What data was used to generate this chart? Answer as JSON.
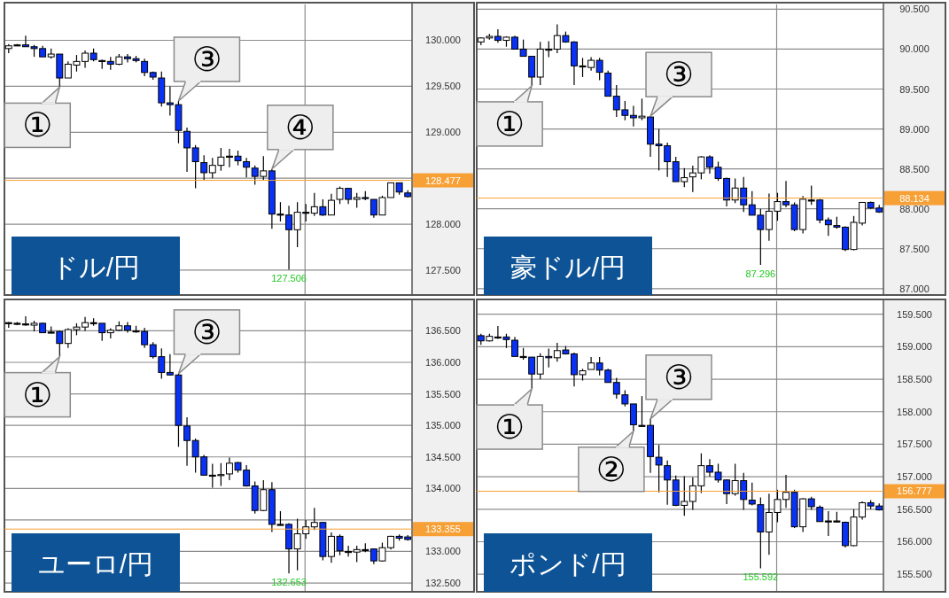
{
  "chart_data": [
    {
      "type": "candlestick",
      "title": "ドル/円",
      "tick_labels": "y",
      "grid": true,
      "categories": [
        null,
        null,
        null,
        null,
        null,
        null,
        null,
        null,
        null,
        null,
        null,
        null,
        null,
        null,
        null,
        null,
        null,
        null,
        null,
        null,
        null,
        null,
        null,
        null,
        null,
        null,
        null,
        null,
        null,
        null,
        null,
        null,
        null,
        null,
        null,
        null,
        null,
        null,
        null,
        null,
        null,
        null,
        null,
        null,
        null,
        null,
        null,
        null
      ],
      "ohlc": [
        [
          129.91,
          129.96,
          129.86,
          129.94
        ],
        [
          129.95,
          129.96,
          129.94,
          129.95
        ],
        [
          129.95,
          130.05,
          129.93,
          129.93
        ],
        [
          129.93,
          129.95,
          129.82,
          129.91
        ],
        [
          129.91,
          129.94,
          129.82,
          129.82
        ],
        [
          129.82,
          129.91,
          129.8,
          129.85
        ],
        [
          129.85,
          129.85,
          129.49,
          129.59
        ],
        [
          129.59,
          129.77,
          129.59,
          129.74
        ],
        [
          129.73,
          129.84,
          129.66,
          129.77
        ],
        [
          129.77,
          129.89,
          129.7,
          129.86
        ],
        [
          129.86,
          129.91,
          129.77,
          129.79
        ],
        [
          129.78,
          129.79,
          129.69,
          129.78
        ],
        [
          129.77,
          129.82,
          129.68,
          129.74
        ],
        [
          129.74,
          129.85,
          129.73,
          129.82
        ],
        [
          129.82,
          129.85,
          129.76,
          129.8
        ],
        [
          129.8,
          129.83,
          129.76,
          129.78
        ],
        [
          129.77,
          129.8,
          129.61,
          129.65
        ],
        [
          129.65,
          129.66,
          129.57,
          129.6
        ],
        [
          129.59,
          129.66,
          129.28,
          129.32
        ],
        [
          129.32,
          129.5,
          129.18,
          129.3
        ],
        [
          129.3,
          129.34,
          128.88,
          129.02
        ],
        [
          129.01,
          129.05,
          128.57,
          128.83
        ],
        [
          128.83,
          128.86,
          128.39,
          128.68
        ],
        [
          128.67,
          128.75,
          128.48,
          128.56
        ],
        [
          128.56,
          128.72,
          128.5,
          128.64
        ],
        [
          128.64,
          128.83,
          128.58,
          128.73
        ],
        [
          128.74,
          128.82,
          128.62,
          128.74
        ],
        [
          128.74,
          128.8,
          128.64,
          128.69
        ],
        [
          128.68,
          128.72,
          128.51,
          128.62
        ],
        [
          128.61,
          128.64,
          128.43,
          128.52
        ],
        [
          128.52,
          128.74,
          128.48,
          128.58
        ],
        [
          128.58,
          128.6,
          127.95,
          128.11
        ],
        [
          128.11,
          128.24,
          128.03,
          128.11
        ],
        [
          128.1,
          128.2,
          127.506,
          127.94
        ],
        [
          127.94,
          128.24,
          127.75,
          128.13
        ],
        [
          128.13,
          128.22,
          128.03,
          128.13
        ],
        [
          128.12,
          128.34,
          128.09,
          128.19
        ],
        [
          128.19,
          128.27,
          128.09,
          128.1
        ],
        [
          128.1,
          128.33,
          128.1,
          128.26
        ],
        [
          128.27,
          128.41,
          128.22,
          128.39
        ],
        [
          128.39,
          128.39,
          128.22,
          128.27
        ],
        [
          128.27,
          128.34,
          128.18,
          128.29
        ],
        [
          128.29,
          128.36,
          128.26,
          128.28
        ],
        [
          128.27,
          128.27,
          128.07,
          128.1
        ],
        [
          128.1,
          128.31,
          128.1,
          128.29
        ],
        [
          128.29,
          128.45,
          128.29,
          128.45
        ],
        [
          128.45,
          128.45,
          128.32,
          128.35
        ],
        [
          128.34,
          128.37,
          128.29,
          128.3
        ]
      ],
      "ylim": [
        127.23,
        130.39
      ],
      "yticks": [
        {
          "value": 127.5,
          "label": "127.500"
        },
        {
          "value": 128,
          "label": "128.000"
        },
        {
          "value": 128.5,
          "label": null
        },
        {
          "value": 129,
          "label": "129.000"
        },
        {
          "value": 129.5,
          "label": "129.500"
        },
        {
          "value": 130,
          "label": "130.000"
        }
      ],
      "ref_lines": [
        {
          "axis": "y",
          "value": 128.477,
          "label": "128.477",
          "color": "#f7a035"
        }
      ],
      "annotations": [
        "①",
        "③",
        "④",
        {
          "text": "127.506",
          "y": 127.506
        }
      ]
    },
    {
      "type": "candlestick",
      "title": "豪ドル/円",
      "tick_labels": "y",
      "grid": true,
      "categories": [
        null,
        null,
        null,
        null,
        null,
        null,
        null,
        null,
        null,
        null,
        null,
        null,
        null,
        null,
        null,
        null,
        null,
        null,
        null,
        null,
        null,
        null,
        null,
        null,
        null,
        null,
        null,
        null,
        null,
        null,
        null,
        null,
        null,
        null,
        null,
        null,
        null,
        null,
        null,
        null,
        null,
        null,
        null,
        null,
        null,
        null,
        null,
        null
      ],
      "ohlc": [
        [
          90.09,
          90.15,
          90.05,
          90.14
        ],
        [
          90.14,
          90.19,
          90.12,
          90.16
        ],
        [
          90.16,
          90.25,
          90.08,
          90.11
        ],
        [
          90.11,
          90.16,
          90.03,
          90.15
        ],
        [
          90.15,
          90.17,
          90.0,
          90.0
        ],
        [
          90.0,
          90.12,
          89.91,
          89.91
        ],
        [
          89.91,
          89.91,
          89.54,
          89.65
        ],
        [
          89.65,
          90.09,
          89.55,
          90.0
        ],
        [
          90.0,
          90.1,
          89.9,
          90.0
        ],
        [
          90.0,
          90.31,
          89.95,
          90.17
        ],
        [
          90.17,
          90.22,
          90.08,
          90.09
        ],
        [
          90.09,
          90.1,
          89.55,
          89.79
        ],
        [
          89.79,
          89.89,
          89.65,
          89.79
        ],
        [
          89.77,
          89.9,
          89.73,
          89.86
        ],
        [
          89.86,
          89.89,
          89.61,
          89.71
        ],
        [
          89.7,
          89.73,
          89.41,
          89.41
        ],
        [
          89.41,
          89.55,
          89.15,
          89.24
        ],
        [
          89.24,
          89.35,
          89.11,
          89.17
        ],
        [
          89.17,
          89.29,
          89.03,
          89.14
        ],
        [
          89.14,
          89.38,
          89.11,
          89.16
        ],
        [
          89.15,
          89.16,
          88.65,
          88.81
        ],
        [
          88.81,
          89.0,
          88.48,
          88.79
        ],
        [
          88.79,
          88.83,
          88.4,
          88.59
        ],
        [
          88.59,
          88.65,
          88.34,
          88.34
        ],
        [
          88.34,
          88.51,
          88.27,
          88.39
        ],
        [
          88.4,
          88.54,
          88.21,
          88.45
        ],
        [
          88.45,
          88.66,
          88.37,
          88.65
        ],
        [
          88.65,
          88.67,
          88.44,
          88.52
        ],
        [
          88.52,
          88.59,
          88.35,
          88.38
        ],
        [
          88.38,
          88.39,
          88.03,
          88.11
        ],
        [
          88.11,
          88.38,
          88.07,
          88.26
        ],
        [
          88.26,
          88.4,
          87.96,
          88.05
        ],
        [
          88.05,
          88.22,
          87.92,
          87.92
        ],
        [
          87.92,
          88.0,
          87.296,
          87.74
        ],
        [
          87.74,
          88.19,
          87.6,
          87.97
        ],
        [
          87.97,
          88.2,
          87.85,
          88.09
        ],
        [
          88.09,
          88.35,
          88.02,
          88.05
        ],
        [
          88.05,
          88.08,
          87.72,
          87.74
        ],
        [
          87.74,
          88.16,
          87.69,
          88.12
        ],
        [
          88.11,
          88.29,
          88.05,
          88.11
        ],
        [
          88.11,
          88.12,
          87.82,
          87.86
        ],
        [
          87.86,
          87.89,
          87.66,
          87.8
        ],
        [
          87.79,
          87.9,
          87.75,
          87.77
        ],
        [
          87.77,
          87.78,
          87.47,
          87.49
        ],
        [
          87.49,
          87.91,
          87.48,
          87.83
        ],
        [
          87.82,
          88.08,
          87.79,
          88.08
        ],
        [
          88.08,
          88.09,
          88.0,
          88.01
        ],
        [
          88.01,
          88.05,
          87.95,
          87.96
        ]
      ],
      "ylim": [
        86.92,
        90.56
      ],
      "yticks": [
        {
          "value": 87,
          "label": "87.000"
        },
        {
          "value": 87.5,
          "label": "87.500"
        },
        {
          "value": 88,
          "label": "88.000"
        },
        {
          "value": 88.5,
          "label": "88.500"
        },
        {
          "value": 89,
          "label": "89.000"
        },
        {
          "value": 89.5,
          "label": "89.500"
        },
        {
          "value": 90,
          "label": "90.000"
        },
        {
          "value": 90.5,
          "label": "90.500"
        }
      ],
      "ref_lines": [
        {
          "axis": "y",
          "value": 88.134,
          "label": "88.134",
          "color": "#f7a035"
        }
      ],
      "annotations": [
        "①",
        "③",
        {
          "text": "87.296",
          "y": 87.296
        }
      ]
    },
    {
      "type": "candlestick",
      "title": "ユーロ/円",
      "tick_labels": "y",
      "grid": true,
      "categories": [
        null,
        null,
        null,
        null,
        null,
        null,
        null,
        null,
        null,
        null,
        null,
        null,
        null,
        null,
        null,
        null,
        null,
        null,
        null,
        null,
        null,
        null,
        null,
        null,
        null,
        null,
        null,
        null,
        null,
        null,
        null,
        null,
        null,
        null,
        null,
        null,
        null,
        null,
        null,
        null,
        null,
        null,
        null,
        null,
        null,
        null,
        null,
        null
      ],
      "ohlc": [
        [
          136.63,
          136.64,
          136.55,
          136.63
        ],
        [
          136.62,
          136.64,
          136.59,
          136.62
        ],
        [
          136.61,
          136.73,
          136.58,
          136.61
        ],
        [
          136.59,
          136.66,
          136.49,
          136.62
        ],
        [
          136.62,
          136.63,
          136.47,
          136.47
        ],
        [
          136.48,
          136.57,
          136.46,
          136.48
        ],
        [
          136.49,
          136.5,
          136.09,
          136.3
        ],
        [
          136.3,
          136.54,
          136.23,
          136.52
        ],
        [
          136.52,
          136.62,
          136.43,
          136.56
        ],
        [
          136.56,
          136.72,
          136.5,
          136.63
        ],
        [
          136.63,
          136.7,
          136.58,
          136.63
        ],
        [
          136.62,
          136.62,
          136.34,
          136.47
        ],
        [
          136.47,
          136.54,
          136.38,
          136.51
        ],
        [
          136.51,
          136.65,
          136.5,
          136.58
        ],
        [
          136.58,
          136.64,
          136.47,
          136.51
        ],
        [
          136.5,
          136.58,
          136.47,
          136.5
        ],
        [
          136.49,
          136.55,
          136.23,
          136.28
        ],
        [
          136.28,
          136.32,
          136.06,
          136.09
        ],
        [
          136.09,
          136.22,
          135.74,
          135.84
        ],
        [
          135.84,
          136.13,
          135.79,
          135.8
        ],
        [
          135.8,
          135.82,
          134.66,
          135.0
        ],
        [
          134.99,
          135.13,
          134.36,
          134.76
        ],
        [
          134.76,
          134.79,
          134.25,
          134.5
        ],
        [
          134.5,
          134.53,
          134.2,
          134.21
        ],
        [
          134.21,
          134.39,
          134.01,
          134.21
        ],
        [
          134.21,
          134.4,
          134.04,
          134.22
        ],
        [
          134.23,
          134.49,
          134.13,
          134.4
        ],
        [
          134.41,
          134.42,
          134.25,
          134.29
        ],
        [
          134.29,
          134.37,
          134.03,
          134.04
        ],
        [
          134.04,
          134.11,
          133.6,
          133.65
        ],
        [
          133.65,
          134.13,
          133.64,
          133.98
        ],
        [
          133.98,
          134.1,
          133.31,
          133.43
        ],
        [
          133.43,
          133.64,
          133.41,
          133.43
        ],
        [
          133.43,
          133.45,
          132.653,
          133.04
        ],
        [
          133.04,
          133.52,
          132.7,
          133.28
        ],
        [
          133.28,
          133.5,
          133.2,
          133.39
        ],
        [
          133.39,
          133.69,
          133.34,
          133.46
        ],
        [
          133.46,
          133.47,
          132.86,
          132.92
        ],
        [
          132.92,
          133.3,
          132.82,
          133.24
        ],
        [
          133.24,
          133.27,
          132.94,
          133.01
        ],
        [
          133.0,
          133.09,
          132.92,
          133.0
        ],
        [
          132.99,
          133.09,
          132.83,
          133.03
        ],
        [
          133.03,
          133.13,
          132.99,
          133.03
        ],
        [
          133.04,
          133.05,
          132.8,
          132.85
        ],
        [
          132.85,
          133.14,
          132.84,
          133.06
        ],
        [
          133.06,
          133.25,
          133.03,
          133.24
        ],
        [
          133.24,
          133.27,
          133.17,
          133.21
        ],
        [
          133.23,
          133.26,
          133.17,
          133.19
        ]
      ],
      "ylim": [
        132.36,
        136.97
      ],
      "yticks": [
        {
          "value": 132.5,
          "label": "132.500"
        },
        {
          "value": 133,
          "label": "133.000"
        },
        {
          "value": 133.5,
          "label": null
        },
        {
          "value": 134,
          "label": "134.000"
        },
        {
          "value": 134.5,
          "label": "134.500"
        },
        {
          "value": 135,
          "label": "135.000"
        },
        {
          "value": 135.5,
          "label": "135.500"
        },
        {
          "value": 136,
          "label": "136.000"
        },
        {
          "value": 136.5,
          "label": "136.500"
        }
      ],
      "ref_lines": [
        {
          "axis": "y",
          "value": 133.355,
          "label": "133.355",
          "color": "#f7a035"
        }
      ],
      "annotations": [
        "①",
        "③",
        {
          "text": "132.653",
          "y": 132.653
        }
      ]
    },
    {
      "type": "candlestick",
      "title": "ポンド/円",
      "tick_labels": "y",
      "grid": true,
      "categories": [
        null,
        null,
        null,
        null,
        null,
        null,
        null,
        null,
        null,
        null,
        null,
        null,
        null,
        null,
        null,
        null,
        null,
        null,
        null,
        null,
        null,
        null,
        null,
        null,
        null,
        null,
        null,
        null,
        null,
        null,
        null,
        null,
        null,
        null,
        null,
        null,
        null,
        null,
        null,
        null,
        null,
        null,
        null,
        null,
        null,
        null,
        null,
        null
      ],
      "ohlc": [
        [
          159.17,
          159.2,
          159.03,
          159.09
        ],
        [
          159.09,
          159.2,
          159.08,
          159.16
        ],
        [
          159.15,
          159.32,
          159.12,
          159.15
        ],
        [
          159.15,
          159.2,
          158.98,
          159.11
        ],
        [
          159.1,
          159.15,
          158.85,
          158.85
        ],
        [
          158.85,
          158.98,
          158.8,
          158.85
        ],
        [
          158.84,
          158.84,
          158.35,
          158.58
        ],
        [
          158.58,
          158.9,
          158.5,
          158.85
        ],
        [
          158.85,
          158.97,
          158.68,
          158.83
        ],
        [
          158.83,
          159.06,
          158.77,
          158.94
        ],
        [
          158.95,
          159.01,
          158.88,
          158.89
        ],
        [
          158.89,
          158.91,
          158.39,
          158.57
        ],
        [
          158.57,
          158.66,
          158.48,
          158.63
        ],
        [
          158.65,
          158.84,
          158.65,
          158.75
        ],
        [
          158.75,
          158.84,
          158.56,
          158.64
        ],
        [
          158.64,
          158.66,
          158.45,
          158.45
        ],
        [
          158.45,
          158.52,
          158.2,
          158.27
        ],
        [
          158.26,
          158.33,
          158.08,
          158.12
        ],
        [
          158.12,
          158.12,
          157.7,
          157.8
        ],
        [
          157.79,
          158.24,
          157.78,
          157.79
        ],
        [
          157.79,
          157.89,
          157.06,
          157.31
        ],
        [
          157.3,
          157.49,
          156.76,
          157.18
        ],
        [
          157.17,
          157.25,
          156.57,
          156.95
        ],
        [
          156.95,
          157.02,
          156.55,
          156.56
        ],
        [
          156.56,
          157.01,
          156.4,
          156.62
        ],
        [
          156.62,
          156.99,
          156.49,
          156.86
        ],
        [
          156.86,
          157.36,
          156.75,
          157.17
        ],
        [
          157.17,
          157.27,
          157.0,
          157.07
        ],
        [
          157.07,
          157.2,
          156.91,
          156.95
        ],
        [
          156.95,
          156.96,
          156.58,
          156.74
        ],
        [
          156.74,
          157.2,
          156.71,
          156.94
        ],
        [
          156.94,
          157.06,
          156.49,
          156.65
        ],
        [
          156.64,
          156.91,
          156.56,
          156.58
        ],
        [
          156.57,
          156.68,
          155.592,
          156.15
        ],
        [
          156.15,
          156.74,
          155.8,
          156.45
        ],
        [
          156.45,
          156.8,
          156.3,
          156.65
        ],
        [
          156.65,
          157.03,
          156.52,
          156.76
        ],
        [
          156.76,
          156.8,
          156.21,
          156.23
        ],
        [
          156.23,
          156.67,
          156.15,
          156.66
        ],
        [
          156.66,
          156.69,
          156.49,
          156.54
        ],
        [
          156.53,
          156.56,
          156.31,
          156.31
        ],
        [
          156.32,
          156.47,
          156.09,
          156.32
        ],
        [
          156.32,
          156.46,
          156.3,
          156.32
        ],
        [
          156.3,
          156.31,
          155.91,
          155.94
        ],
        [
          155.94,
          156.5,
          155.93,
          156.38
        ],
        [
          156.38,
          156.62,
          156.34,
          156.6
        ],
        [
          156.6,
          156.64,
          156.5,
          156.55
        ],
        [
          156.55,
          156.59,
          156.48,
          156.49
        ]
      ],
      "ylim": [
        155.23,
        159.7
      ],
      "yticks": [
        {
          "value": 155.5,
          "label": "155.500"
        },
        {
          "value": 156,
          "label": "156.000"
        },
        {
          "value": 156.5,
          "label": "156.500"
        },
        {
          "value": 157,
          "label": "157.000"
        },
        {
          "value": 157.5,
          "label": "157.500"
        },
        {
          "value": 158,
          "label": "158.000"
        },
        {
          "value": 158.5,
          "label": "158.500"
        },
        {
          "value": 159,
          "label": "159.000"
        },
        {
          "value": 159.5,
          "label": "159.500"
        }
      ],
      "ref_lines": [
        {
          "axis": "y",
          "value": 156.777,
          "label": "156.777",
          "color": "#f7a035"
        }
      ],
      "annotations": [
        "①",
        "②",
        "③",
        {
          "text": "155.592",
          "y": 155.592
        }
      ]
    }
  ]
}
